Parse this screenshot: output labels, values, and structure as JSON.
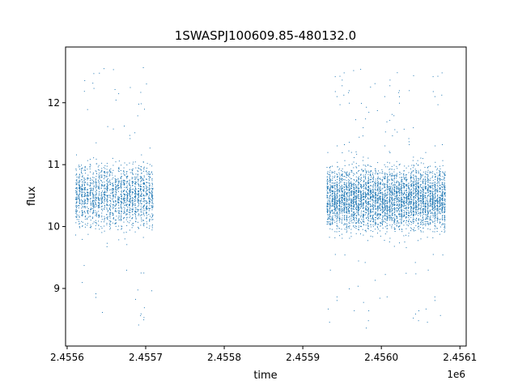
{
  "chart_data": {
    "type": "scatter",
    "title": "1SWASPJ100609.85-480132.0",
    "xlabel": "time",
    "ylabel": "flux",
    "x_offset_label": "1e6",
    "xlim": [
      2455598,
      2456108
    ],
    "ylim": [
      8.07,
      12.9
    ],
    "x_ticks": [
      2455600,
      2455700,
      2455800,
      2455900,
      2456000,
      2456100
    ],
    "x_tick_labels": [
      "2.4556",
      "2.4557",
      "2.4558",
      "2.4559",
      "2.4560",
      "2.4561"
    ],
    "y_ticks": [
      9,
      10,
      11,
      12
    ],
    "y_tick_labels": [
      "9",
      "10",
      "11",
      "12"
    ],
    "grid": false,
    "marker_color": "#1f77b4",
    "series": [
      {
        "segments": [
          {
            "x_range": [
              2455610,
              2455710
            ],
            "flux_center": 10.5,
            "flux_spread": 0.35,
            "nights": 28,
            "points_per_night": 55
          },
          {
            "x_range": [
              2455930,
              2456082
            ],
            "flux_center": 10.45,
            "flux_spread": 0.35,
            "nights": 50,
            "points_per_night": 75
          }
        ],
        "range_extremes": {
          "min": 8.3,
          "max": 12.7
        }
      }
    ]
  }
}
